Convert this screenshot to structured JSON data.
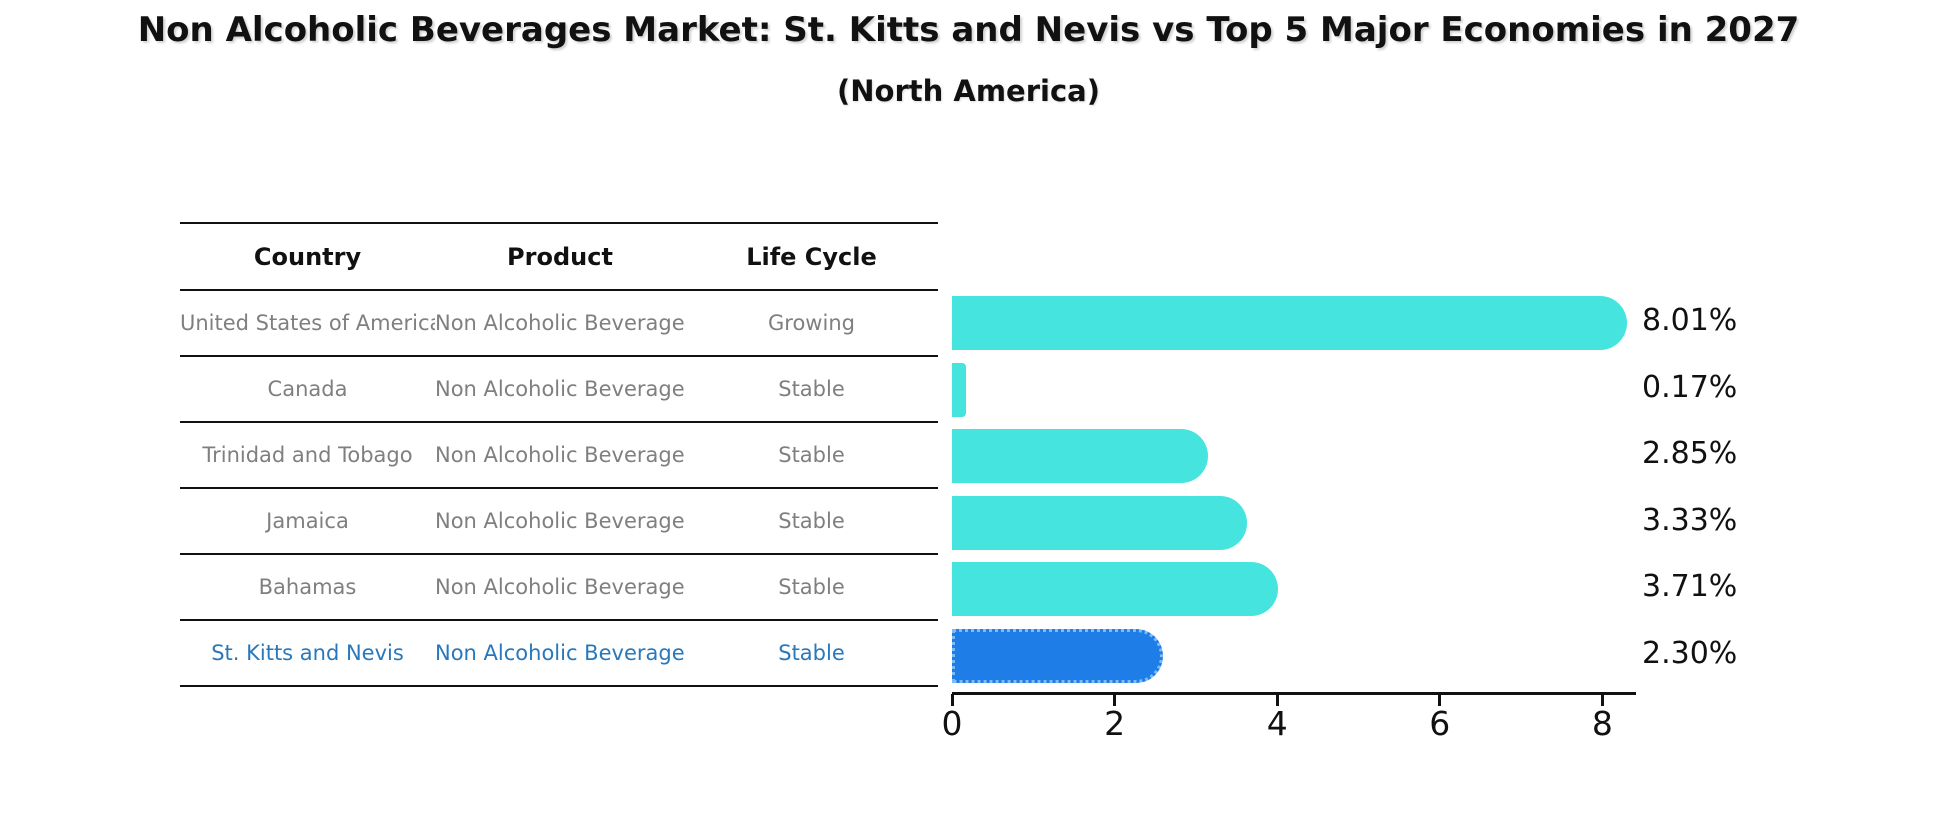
{
  "title": "Non Alcoholic Beverages Market: St. Kitts and Nevis vs Top 5 Major Economies in 2027",
  "subtitle": "(North America)",
  "table": {
    "headers": [
      "Country",
      "Product",
      "Life Cycle"
    ],
    "rows": [
      {
        "country": "United States of America",
        "product": "Non Alcoholic Beverages",
        "life_cycle": "Growing",
        "highlighted": false
      },
      {
        "country": "Canada",
        "product": "Non Alcoholic Beverages",
        "life_cycle": "Stable",
        "highlighted": false
      },
      {
        "country": "Trinidad and Tobago",
        "product": "Non Alcoholic Beverages",
        "life_cycle": "Stable",
        "highlighted": false
      },
      {
        "country": "Jamaica",
        "product": "Non Alcoholic Beverages",
        "life_cycle": "Stable",
        "highlighted": false
      },
      {
        "country": "Bahamas",
        "product": "Non Alcoholic Beverages",
        "life_cycle": "Stable",
        "highlighted": false
      },
      {
        "country": "St. Kitts and Nevis",
        "product": "Non Alcoholic Beverages",
        "life_cycle": "Stable",
        "highlighted": true
      }
    ]
  },
  "chart_data": {
    "type": "bar",
    "orientation": "horizontal",
    "title": "Non Alcoholic Beverages Market: St. Kitts and Nevis vs Top 5 Major Economies in 2027 (North America)",
    "categories": [
      "United States of America",
      "Canada",
      "Trinidad and Tobago",
      "Jamaica",
      "Bahamas",
      "St. Kitts and Nevis"
    ],
    "values": [
      8.01,
      0.17,
      2.85,
      3.33,
      3.71,
      2.3
    ],
    "value_labels": [
      "8.01%",
      "0.17%",
      "2.85%",
      "3.33%",
      "3.71%",
      "2.30%"
    ],
    "xlabel": "",
    "ylabel": "",
    "xlim": [
      0,
      8.4
    ],
    "xticks": [
      0,
      2,
      4,
      6,
      8
    ],
    "grid": false,
    "legend": "none",
    "bar_color": "#45E4DE",
    "highlight_bar_color": "#1F7DE8",
    "highlight_border_color": "#7FBCF5",
    "highlight_index": 5
  },
  "colors": {
    "background": "#FFFFFF",
    "table_text": "#7F7F7F",
    "header_text": "#111111",
    "highlight_text": "#2878BB",
    "axis": "#111111",
    "value_label_text": "#111111"
  }
}
